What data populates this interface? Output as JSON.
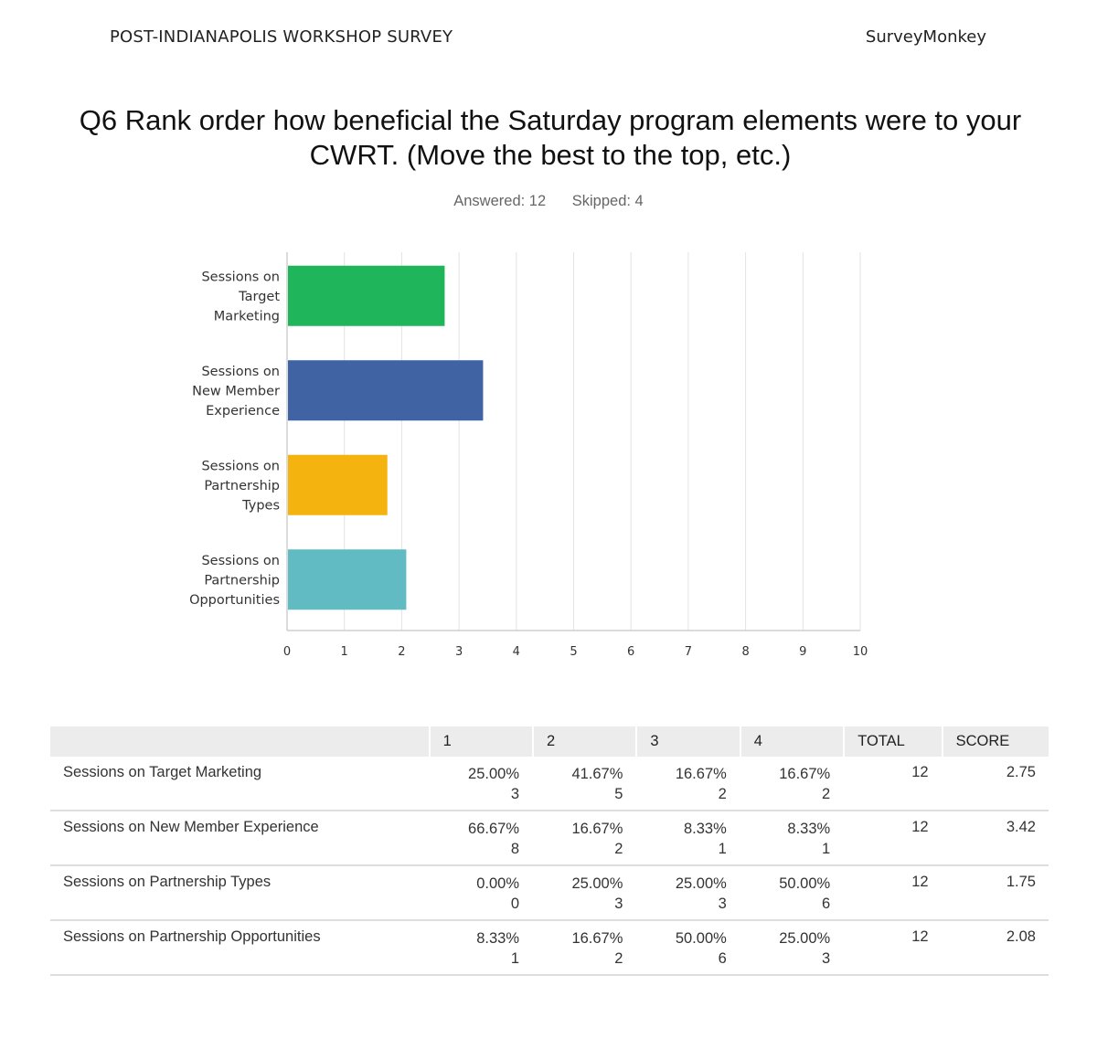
{
  "header": {
    "survey_name": "POST-INDIANAPOLIS WORKSHOP SURVEY",
    "brand": "SurveyMonkey"
  },
  "question": {
    "title": "Q6 Rank order how beneficial the Saturday program elements were to your CWRT. (Move the best to the top, etc.)",
    "answered": "Answered: 12",
    "skipped": "Skipped: 4"
  },
  "chart_data": {
    "type": "bar",
    "orientation": "horizontal",
    "categories": [
      [
        "Sessions on",
        "Target",
        "Marketing"
      ],
      [
        "Sessions on",
        "New Member",
        "Experience"
      ],
      [
        "Sessions on",
        "Partnership",
        "Types"
      ],
      [
        "Sessions on",
        "Partnership",
        "Opportunities"
      ]
    ],
    "values": [
      2.75,
      3.42,
      1.75,
      2.08
    ],
    "colors": [
      "#1fb65b",
      "#3f63a3",
      "#f4b30f",
      "#60bcc2"
    ],
    "xlim": [
      0,
      10
    ],
    "ticks": [
      0,
      1,
      2,
      3,
      4,
      5,
      6,
      7,
      8,
      9,
      10
    ],
    "grid": true
  },
  "table": {
    "headers": [
      "",
      "1",
      "2",
      "3",
      "4",
      "TOTAL",
      "SCORE"
    ],
    "rows": [
      {
        "label": "Sessions on Target Marketing",
        "pcts": [
          "25.00%",
          "41.67%",
          "16.67%",
          "16.67%"
        ],
        "counts": [
          "3",
          "5",
          "2",
          "2"
        ],
        "total": "12",
        "score": "2.75"
      },
      {
        "label": "Sessions on New Member Experience",
        "pcts": [
          "66.67%",
          "16.67%",
          "8.33%",
          "8.33%"
        ],
        "counts": [
          "8",
          "2",
          "1",
          "1"
        ],
        "total": "12",
        "score": "3.42"
      },
      {
        "label": "Sessions on Partnership Types",
        "pcts": [
          "0.00%",
          "25.00%",
          "25.00%",
          "50.00%"
        ],
        "counts": [
          "0",
          "3",
          "3",
          "6"
        ],
        "total": "12",
        "score": "1.75"
      },
      {
        "label": "Sessions on Partnership Opportunities",
        "pcts": [
          "8.33%",
          "16.67%",
          "50.00%",
          "25.00%"
        ],
        "counts": [
          "1",
          "2",
          "6",
          "3"
        ],
        "total": "12",
        "score": "2.08"
      }
    ]
  }
}
